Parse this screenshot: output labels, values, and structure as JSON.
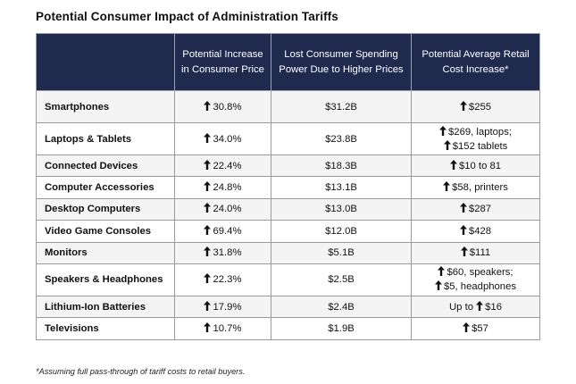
{
  "title": "Potential Consumer Impact of Administration Tariffs",
  "header": {
    "col0": "",
    "col1": "Potential Increase in Consumer Price",
    "col2": "Lost Consumer Spending Power Due to Higher Prices",
    "col3": "Potential Average Retail Cost Increase*"
  },
  "rows": [
    {
      "category": "Smartphones",
      "price_increase": "30.8%",
      "lost_spending": "$31.2B",
      "retail_increase": [
        {
          "arrow": true,
          "prefix": "",
          "text": "$255"
        }
      ]
    },
    {
      "category": "Laptops & Tablets",
      "price_increase": "34.0%",
      "lost_spending": "$23.8B",
      "retail_increase": [
        {
          "arrow": true,
          "prefix": "",
          "text": "$269, laptops;"
        },
        {
          "arrow": true,
          "prefix": "",
          "text": "$152 tablets"
        }
      ]
    },
    {
      "category": "Connected Devices",
      "price_increase": "22.4%",
      "lost_spending": "$18.3B",
      "retail_increase": [
        {
          "arrow": true,
          "prefix": "",
          "text": "$10 to 81"
        }
      ]
    },
    {
      "category": "Computer Accessories",
      "price_increase": "24.8%",
      "lost_spending": "$13.1B",
      "retail_increase": [
        {
          "arrow": true,
          "prefix": "",
          "text": "$58, printers"
        }
      ]
    },
    {
      "category": "Desktop Computers",
      "price_increase": "24.0%",
      "lost_spending": "$13.0B",
      "retail_increase": [
        {
          "arrow": true,
          "prefix": "",
          "text": "$287"
        }
      ]
    },
    {
      "category": "Video Game Consoles",
      "price_increase": "69.4%",
      "lost_spending": "$12.0B",
      "retail_increase": [
        {
          "arrow": true,
          "prefix": "",
          "text": "$428"
        }
      ]
    },
    {
      "category": "Monitors",
      "price_increase": "31.8%",
      "lost_spending": "$5.1B",
      "retail_increase": [
        {
          "arrow": true,
          "prefix": "",
          "text": "$111"
        }
      ]
    },
    {
      "category": "Speakers & Headphones",
      "price_increase": "22.3%",
      "lost_spending": "$2.5B",
      "retail_increase": [
        {
          "arrow": true,
          "prefix": "",
          "text": "$60, speakers;"
        },
        {
          "arrow": true,
          "prefix": "",
          "text": "$5, headphones"
        }
      ]
    },
    {
      "category": "Lithium-Ion Batteries",
      "price_increase": "17.9%",
      "lost_spending": "$2.4B",
      "retail_increase": [
        {
          "arrow": true,
          "prefix": "Up to ",
          "text": "$16"
        }
      ]
    },
    {
      "category": "Televisions",
      "price_increase": "10.7%",
      "lost_spending": "$1.9B",
      "retail_increase": [
        {
          "arrow": true,
          "prefix": "",
          "text": "$57"
        }
      ]
    }
  ],
  "footnote": "*Assuming full pass-through of tariff costs to retail buyers.",
  "colors": {
    "header_bg": "#202a4e",
    "row_alt_bg": "#f4f4f4",
    "arrow": "#111111"
  },
  "icons": {
    "increase": "up-arrow-icon"
  }
}
